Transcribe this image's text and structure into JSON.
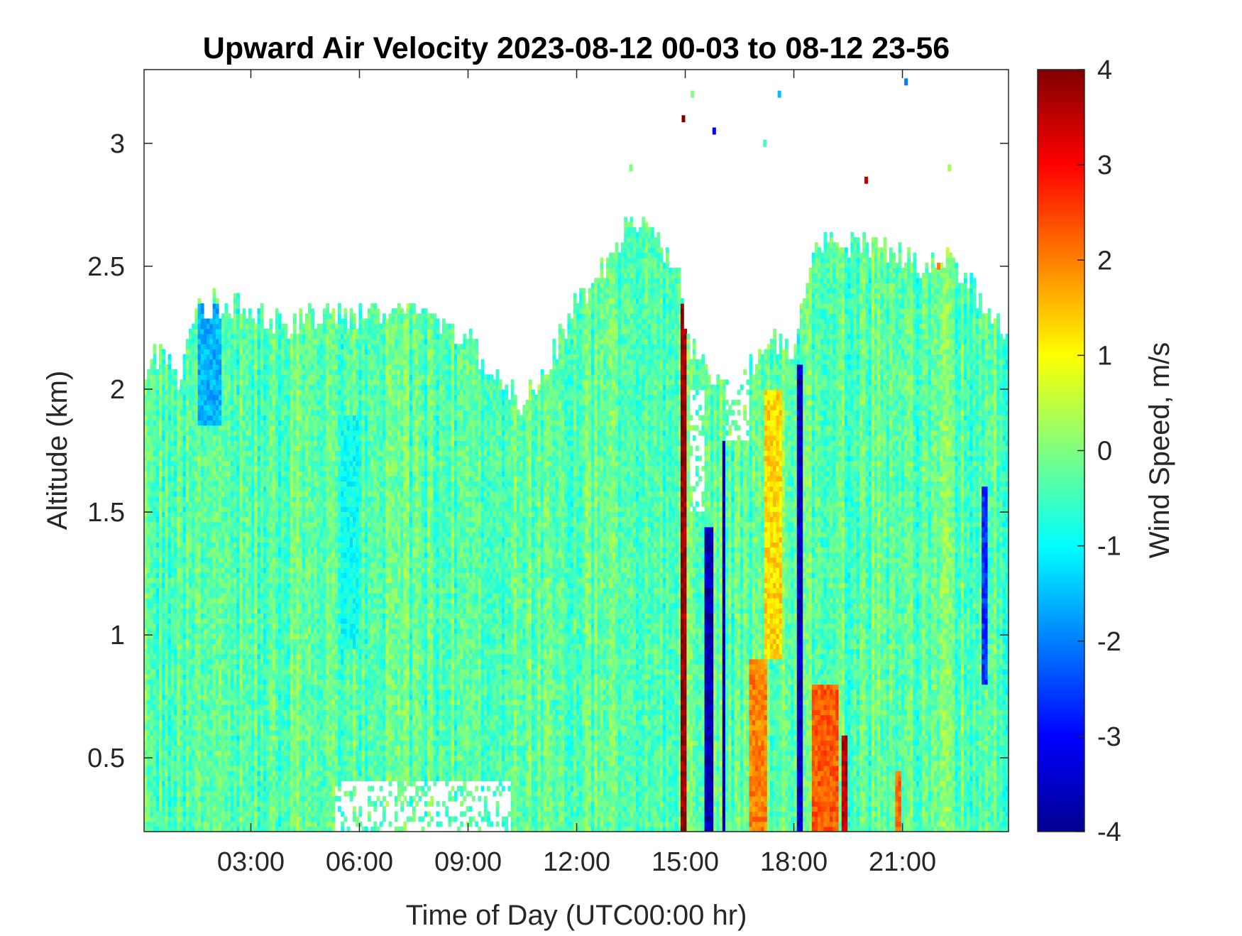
{
  "chart_data": {
    "type": "heatmap",
    "title": "Upward Air Velocity 2023-08-12 00-03 to 08-12 23-56",
    "xlabel": "Time of Day (UTC00:00 hr)",
    "ylabel": "Altitude (km)",
    "colorbar_label": "Wind Speed, m/s",
    "colormap": "jet",
    "x_tick_labels": [
      "03:00",
      "06:00",
      "09:00",
      "12:00",
      "15:00",
      "18:00",
      "21:00"
    ],
    "x_tick_hours": [
      3,
      6,
      9,
      12,
      15,
      18,
      21
    ],
    "xlim_hours": [
      0.05,
      23.93
    ],
    "y_ticks": [
      0.5,
      1,
      1.5,
      2,
      2.5,
      3
    ],
    "y_tick_labels": [
      "0.5",
      "1",
      "1.5",
      "2",
      "2.5",
      "3"
    ],
    "ylim": [
      0.2,
      3.3
    ],
    "colorbar_ticks": [
      4,
      3,
      2,
      1,
      0,
      -1,
      -2,
      -3,
      -4
    ],
    "clim": [
      -4,
      4
    ],
    "background_wind_speed": -0.3,
    "data_top_altitude_km": {
      "hours": [
        0.05,
        0.5,
        1.0,
        1.5,
        2.0,
        2.5,
        3.0,
        3.5,
        4.0,
        4.5,
        5.0,
        5.5,
        6.0,
        6.5,
        7.0,
        7.5,
        8.0,
        8.5,
        9.0,
        9.5,
        10.0,
        10.5,
        11.0,
        11.5,
        12.0,
        12.5,
        13.0,
        13.5,
        14.0,
        14.5,
        14.9,
        15.0,
        15.5,
        16.0,
        16.5,
        17.0,
        17.5,
        18.0,
        18.5,
        19.0,
        19.5,
        20.0,
        20.5,
        21.0,
        21.5,
        22.0,
        22.5,
        23.0,
        23.5,
        23.93
      ],
      "altitude_km": [
        2.1,
        2.15,
        2.05,
        2.3,
        2.35,
        2.35,
        2.3,
        2.3,
        2.25,
        2.3,
        2.3,
        2.3,
        2.3,
        2.3,
        2.3,
        2.3,
        2.3,
        2.25,
        2.2,
        2.1,
        2.0,
        1.95,
        2.05,
        2.2,
        2.35,
        2.45,
        2.55,
        2.7,
        2.7,
        2.55,
        2.45,
        2.2,
        2.1,
        2.0,
        2.0,
        2.15,
        2.2,
        2.1,
        2.6,
        2.6,
        2.6,
        2.6,
        2.55,
        2.55,
        2.5,
        2.55,
        2.5,
        2.4,
        2.3,
        2.2
      ]
    },
    "bands": [
      {
        "hours": [
          1.5,
          2.2
        ],
        "alt_km": [
          1.85,
          2.35
        ],
        "wind_speed": -1.6
      },
      {
        "hours": [
          5.5,
          6.0
        ],
        "alt_km": [
          0.95,
          1.9
        ],
        "wind_speed": -0.9
      },
      {
        "hours": [
          14.85,
          15.0
        ],
        "alt_km": [
          0.2,
          2.35
        ],
        "wind_speed": 3.8
      },
      {
        "hours": [
          15.5,
          15.8
        ],
        "alt_km": [
          0.2,
          1.45
        ],
        "wind_speed": -3.6
      },
      {
        "hours": [
          16.0,
          16.1
        ],
        "alt_km": [
          0.2,
          1.8
        ],
        "wind_speed": -3.7
      },
      {
        "hours": [
          16.8,
          17.3
        ],
        "alt_km": [
          0.2,
          0.9
        ],
        "wind_speed": 2.0
      },
      {
        "hours": [
          17.2,
          17.7
        ],
        "alt_km": [
          0.9,
          2.0
        ],
        "wind_speed": 1.3
      },
      {
        "hours": [
          18.1,
          18.25
        ],
        "alt_km": [
          0.2,
          2.1
        ],
        "wind_speed": -3.5
      },
      {
        "hours": [
          18.5,
          19.2
        ],
        "alt_km": [
          0.2,
          0.8
        ],
        "wind_speed": 2.3
      },
      {
        "hours": [
          19.3,
          19.5
        ],
        "alt_km": [
          0.2,
          0.6
        ],
        "wind_speed": 3.5
      },
      {
        "hours": [
          20.8,
          21.0
        ],
        "alt_km": [
          0.2,
          0.45
        ],
        "wind_speed": 2.2
      },
      {
        "hours": [
          23.2,
          23.35
        ],
        "alt_km": [
          0.8,
          1.6
        ],
        "wind_speed": -2.6
      }
    ],
    "gaps": [
      {
        "hours": [
          5.3,
          10.2
        ],
        "alt_km": [
          0.2,
          0.4
        ]
      },
      {
        "hours": [
          15.1,
          15.5
        ],
        "alt_km": [
          1.5,
          2.0
        ]
      },
      {
        "hours": [
          16.1,
          16.8
        ],
        "alt_km": [
          1.8,
          2.1
        ]
      }
    ],
    "sparse_points": [
      {
        "hour": 14.95,
        "alt_km": 3.1,
        "wind_speed": 4.0
      },
      {
        "hour": 15.8,
        "alt_km": 3.05,
        "wind_speed": -3.0
      },
      {
        "hour": 15.2,
        "alt_km": 3.2,
        "wind_speed": 0.0
      },
      {
        "hour": 17.6,
        "alt_km": 3.2,
        "wind_speed": -1.5
      },
      {
        "hour": 17.2,
        "alt_km": 3.0,
        "wind_speed": -0.5
      },
      {
        "hour": 20.0,
        "alt_km": 2.85,
        "wind_speed": 3.5
      },
      {
        "hour": 22.3,
        "alt_km": 2.9,
        "wind_speed": 0.3
      },
      {
        "hour": 22.0,
        "alt_km": 2.5,
        "wind_speed": 2.0
      },
      {
        "hour": 21.1,
        "alt_km": 3.25,
        "wind_speed": -2.0
      },
      {
        "hour": 13.5,
        "alt_km": 2.9,
        "wind_speed": 0.0
      }
    ]
  }
}
